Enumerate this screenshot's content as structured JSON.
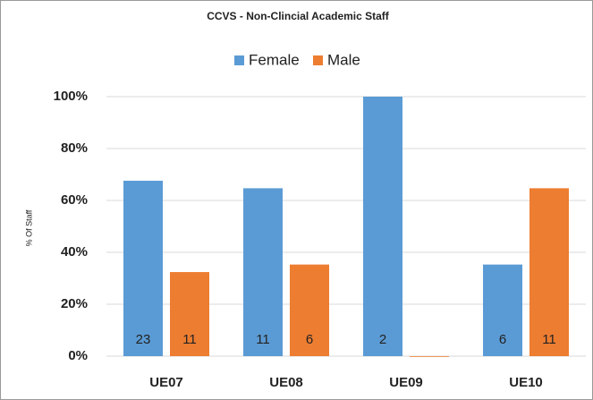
{
  "chart_data": {
    "type": "bar",
    "title": "CCVS - Non-Clincial Academic Staff",
    "y_label": "% Of Staff",
    "categories": [
      "UE07",
      "UE08",
      "UE09",
      "UE10"
    ],
    "series": [
      {
        "name": "Female",
        "color": "#5b9bd5",
        "values": [
          67.6,
          64.7,
          100,
          35.3
        ],
        "counts": [
          "23",
          "11",
          "2",
          "6"
        ]
      },
      {
        "name": "Male",
        "color": "#ed7d31",
        "values": [
          32.4,
          35.3,
          0,
          64.7
        ],
        "counts": [
          "11",
          "6",
          null,
          "11"
        ]
      }
    ],
    "ylim": [
      0,
      100
    ],
    "yticks": [
      {
        "value": 0,
        "label": "0%"
      },
      {
        "value": 20,
        "label": "20%"
      },
      {
        "value": 40,
        "label": "40%"
      },
      {
        "value": 60,
        "label": "60%"
      },
      {
        "value": 80,
        "label": "80%"
      },
      {
        "value": 100,
        "label": "100%"
      }
    ],
    "grid": true,
    "legend": "top"
  }
}
